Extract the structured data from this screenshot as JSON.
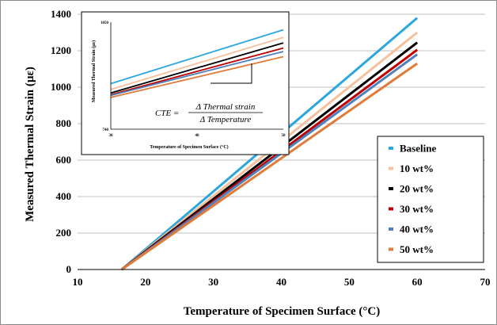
{
  "chart_data": [
    {
      "type": "line",
      "x_range": [
        16.5,
        60
      ],
      "xlabel": "Temperature of Specimen Surface (°C)",
      "ylabel": "Measured Thermal Strain (µε)",
      "xlim": [
        10,
        70
      ],
      "ylim": [
        0,
        1400
      ],
      "x_ticks": [
        "10",
        "20",
        "30",
        "40",
        "50",
        "60",
        "70"
      ],
      "y_ticks": [
        "0",
        "200",
        "400",
        "600",
        "800",
        "1000",
        "1200",
        "1400"
      ],
      "grid": "horizontal",
      "legend_position": "bottom-right",
      "series": [
        {
          "name": "Baseline",
          "color": "#2aa7dc",
          "x": [
            16.5,
            60
          ],
          "values": [
            0,
            1380
          ]
        },
        {
          "name": "10 wt%",
          "color": "#f7c09c",
          "x": [
            16.5,
            60
          ],
          "values": [
            0,
            1300
          ]
        },
        {
          "name": "20 wt%",
          "color": "#000000",
          "x": [
            16.5,
            60
          ],
          "values": [
            0,
            1245
          ]
        },
        {
          "name": "30 wt%",
          "color": "#c00000",
          "x": [
            16.5,
            60
          ],
          "values": [
            0,
            1205
          ]
        },
        {
          "name": "40 wt%",
          "color": "#4f81bd",
          "x": [
            16.5,
            60
          ],
          "values": [
            0,
            1180
          ]
        },
        {
          "name": "50 wt%",
          "color": "#e07b39",
          "x": [
            16.5,
            60
          ],
          "values": [
            0,
            1130
          ]
        }
      ]
    },
    {
      "type": "line",
      "inset": true,
      "xlabel": "Temperature of Specimen Surface (°C)",
      "ylabel": "Measured Thermal Strain (µε)",
      "xlim": [
        30,
        50
      ],
      "ylim": [
        740,
        1050
      ],
      "x_ticks": [
        "30",
        "40",
        "50"
      ],
      "y_ticks": [
        "740",
        "1050"
      ],
      "annotation": {
        "lhs": "CTE =",
        "numerator": "Δ Thermal strain",
        "denominator": "Δ Temperature"
      },
      "series": [
        {
          "name": "Baseline",
          "color": "#2aa7dc",
          "x": [
            30,
            50
          ],
          "values": [
            872,
            1028
          ]
        },
        {
          "name": "10 wt%",
          "color": "#f7c09c",
          "x": [
            30,
            50
          ],
          "values": [
            855,
            1006
          ]
        },
        {
          "name": "20 wt%",
          "color": "#000000",
          "x": [
            30,
            50
          ],
          "values": [
            845,
            990
          ]
        },
        {
          "name": "30 wt%",
          "color": "#c00000",
          "x": [
            30,
            50
          ],
          "values": [
            840,
            975
          ]
        },
        {
          "name": "40 wt%",
          "color": "#4f81bd",
          "x": [
            30,
            50
          ],
          "values": [
            838,
            965
          ]
        },
        {
          "name": "50 wt%",
          "color": "#e07b39",
          "x": [
            30,
            50
          ],
          "values": [
            832,
            950
          ]
        }
      ]
    }
  ]
}
